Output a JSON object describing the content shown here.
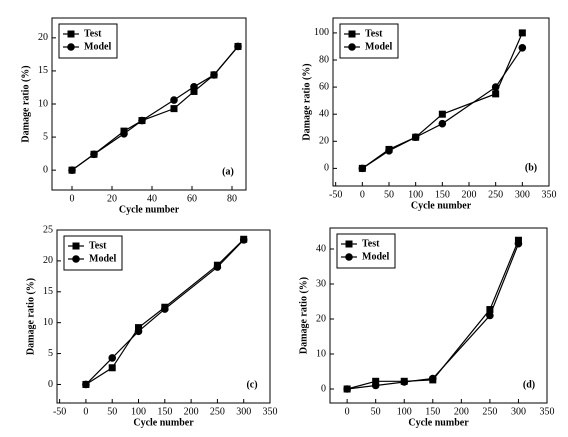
{
  "chart_data": [
    {
      "type": "line",
      "annotation": "(a)",
      "xlabel": "Cycle number",
      "ylabel": "Damage ratio (%)",
      "xlim": [
        -10,
        87
      ],
      "ylim": [
        -3,
        23
      ],
      "xticks": [
        0,
        20,
        40,
        60,
        80
      ],
      "yticks": [
        0,
        5,
        10,
        15,
        20
      ],
      "legend": "upper left",
      "series": [
        {
          "name": "Test",
          "color": "#000000",
          "marker": "square",
          "x": [
            0,
            11,
            26,
            35,
            51,
            61,
            71,
            83
          ],
          "values": [
            0,
            2.4,
            5.9,
            7.5,
            9.3,
            11.9,
            14.4,
            18.7
          ]
        },
        {
          "name": "Model",
          "color": "#000000",
          "marker": "circle",
          "x": [
            0,
            11,
            26,
            35,
            51,
            61,
            71,
            83
          ],
          "values": [
            0,
            2.4,
            5.5,
            7.5,
            10.6,
            12.6,
            14.4,
            18.7
          ]
        }
      ]
    },
    {
      "type": "line",
      "annotation": "(b)",
      "xlabel": "Cycle number",
      "ylabel": "Damage ratio (%)",
      "xlim": [
        -55,
        350
      ],
      "ylim": [
        -13,
        111
      ],
      "xticks": [
        -50,
        0,
        50,
        100,
        150,
        200,
        250,
        300,
        350
      ],
      "yticks": [
        0,
        20,
        40,
        60,
        80,
        100
      ],
      "legend": "upper left",
      "series": [
        {
          "name": "Test",
          "color": "#000000",
          "marker": "square",
          "x": [
            0,
            50,
            100,
            150,
            250,
            300
          ],
          "values": [
            0,
            14,
            23,
            40,
            55,
            100
          ]
        },
        {
          "name": "Model",
          "color": "#000000",
          "marker": "circle",
          "x": [
            0,
            50,
            100,
            150,
            250,
            300
          ],
          "values": [
            0,
            13,
            23,
            33,
            60,
            89
          ]
        }
      ]
    },
    {
      "type": "line",
      "annotation": "(c)",
      "xlabel": "Cycle number",
      "ylabel": "Damage ratio (%)",
      "xlim": [
        -55,
        350
      ],
      "ylim": [
        -3,
        25
      ],
      "xticks": [
        -50,
        0,
        50,
        100,
        150,
        200,
        250,
        300,
        350
      ],
      "yticks": [
        0,
        5,
        10,
        15,
        20,
        25
      ],
      "legend": "upper left",
      "series": [
        {
          "name": "Test",
          "color": "#000000",
          "marker": "square",
          "x": [
            0,
            50,
            100,
            150,
            250,
            300
          ],
          "values": [
            0,
            2.7,
            9.2,
            12.5,
            19.3,
            23.5
          ]
        },
        {
          "name": "Model",
          "color": "#000000",
          "marker": "circle",
          "x": [
            0,
            50,
            100,
            150,
            250,
            300
          ],
          "values": [
            0,
            4.3,
            8.6,
            12.2,
            19,
            23.4
          ]
        }
      ]
    },
    {
      "type": "line",
      "annotation": "(d)",
      "xlabel": "Cycle number",
      "ylabel": "Damage ratio (%)",
      "xlim": [
        -30,
        350
      ],
      "ylim": [
        -4,
        46
      ],
      "xticks": [
        0,
        50,
        100,
        150,
        200,
        250,
        300,
        350
      ],
      "yticks": [
        0,
        10,
        20,
        30,
        40
      ],
      "legend": "upper left",
      "series": [
        {
          "name": "Test",
          "color": "#000000",
          "marker": "square",
          "x": [
            0,
            50,
            100,
            150,
            250,
            300
          ],
          "values": [
            0,
            2.2,
            2.2,
            2.6,
            22.7,
            42.5
          ]
        },
        {
          "name": "Model",
          "color": "#000000",
          "marker": "circle",
          "x": [
            0,
            50,
            100,
            150,
            250,
            300
          ],
          "values": [
            0,
            1,
            2,
            3,
            21,
            41.5
          ]
        }
      ]
    }
  ]
}
